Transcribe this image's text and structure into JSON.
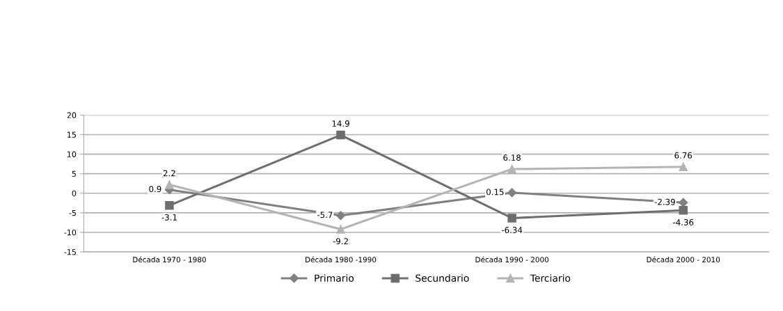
{
  "chart_data": {
    "type": "line",
    "categories": [
      "Década 1970 - 1980",
      "Década 1980 -1990",
      "Década 1990 - 2000",
      "Década 2000 - 2010"
    ],
    "series": [
      {
        "name": "Primario",
        "color": "#808080",
        "marker": "diamond",
        "values": [
          0.9,
          -5.7,
          0.15,
          -2.39
        ]
      },
      {
        "name": "Secundario",
        "color": "#6e6e6e",
        "marker": "square",
        "values": [
          -3.1,
          14.9,
          -6.34,
          -4.36
        ]
      },
      {
        "name": "Terciario",
        "color": "#b4b4b4",
        "marker": "triangle",
        "values": [
          2.2,
          -9.2,
          6.18,
          6.76
        ]
      }
    ],
    "ylim": [
      -15,
      20
    ],
    "yticks": [
      -15,
      -10,
      -5,
      0,
      5,
      10,
      15,
      20
    ],
    "grid": "y",
    "legend": "bottom",
    "data_labels": true,
    "line_style": "solid"
  }
}
